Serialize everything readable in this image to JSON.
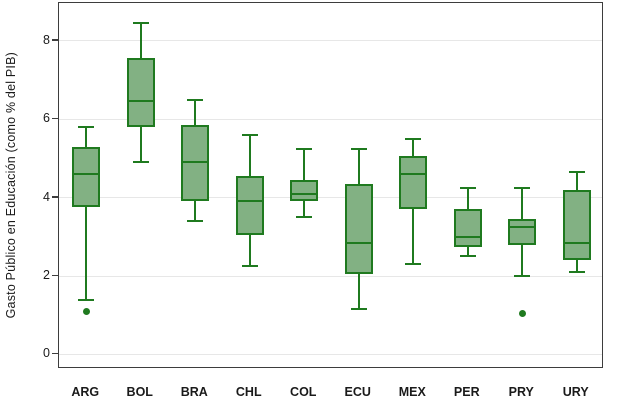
{
  "chart_data": {
    "type": "boxplot",
    "title": "",
    "xlabel": "",
    "ylabel": "Gasto Público en Educación (como % del PIB)",
    "ylim": [
      -0.37,
      8.96
    ],
    "yticks": [
      0,
      2,
      4,
      6,
      8
    ],
    "grid": true,
    "categories": [
      "ARG",
      "BOL",
      "BRA",
      "CHL",
      "COL",
      "ECU",
      "MEX",
      "PER",
      "PRY",
      "URY"
    ],
    "series": [
      {
        "label": "ARG",
        "min": 1.4,
        "q1": 3.75,
        "median": 4.6,
        "q3": 5.3,
        "max": 5.8,
        "outliers": [
          1.1
        ]
      },
      {
        "label": "BOL",
        "min": 4.9,
        "q1": 5.8,
        "median": 6.45,
        "q3": 7.55,
        "max": 8.45,
        "outliers": []
      },
      {
        "label": "BRA",
        "min": 3.4,
        "q1": 3.9,
        "median": 4.9,
        "q3": 5.85,
        "max": 6.5,
        "outliers": []
      },
      {
        "label": "CHL",
        "min": 2.25,
        "q1": 3.05,
        "median": 3.9,
        "q3": 4.55,
        "max": 5.6,
        "outliers": []
      },
      {
        "label": "COL",
        "min": 3.5,
        "q1": 3.9,
        "median": 4.1,
        "q3": 4.45,
        "max": 5.25,
        "outliers": []
      },
      {
        "label": "ECU",
        "min": 1.15,
        "q1": 2.05,
        "median": 2.85,
        "q3": 4.35,
        "max": 5.25,
        "outliers": []
      },
      {
        "label": "MEX",
        "min": 2.3,
        "q1": 3.7,
        "median": 4.6,
        "q3": 5.05,
        "max": 5.5,
        "outliers": []
      },
      {
        "label": "PER",
        "min": 2.5,
        "q1": 2.75,
        "median": 3.0,
        "q3": 3.7,
        "max": 4.25,
        "outliers": []
      },
      {
        "label": "PRY",
        "min": 2.0,
        "q1": 2.8,
        "median": 3.25,
        "q3": 3.45,
        "max": 4.25,
        "outliers": [
          1.05
        ]
      },
      {
        "label": "URY",
        "min": 2.1,
        "q1": 2.4,
        "median": 2.85,
        "q3": 4.2,
        "max": 4.65,
        "outliers": []
      }
    ]
  },
  "colors": {
    "box_fill": "#82b183",
    "box_border": "#1f7a1f",
    "gridline": "#e7e7e7",
    "frame": "#3d3d3d",
    "text": "#1a1a1a",
    "background": "#ffffff"
  }
}
